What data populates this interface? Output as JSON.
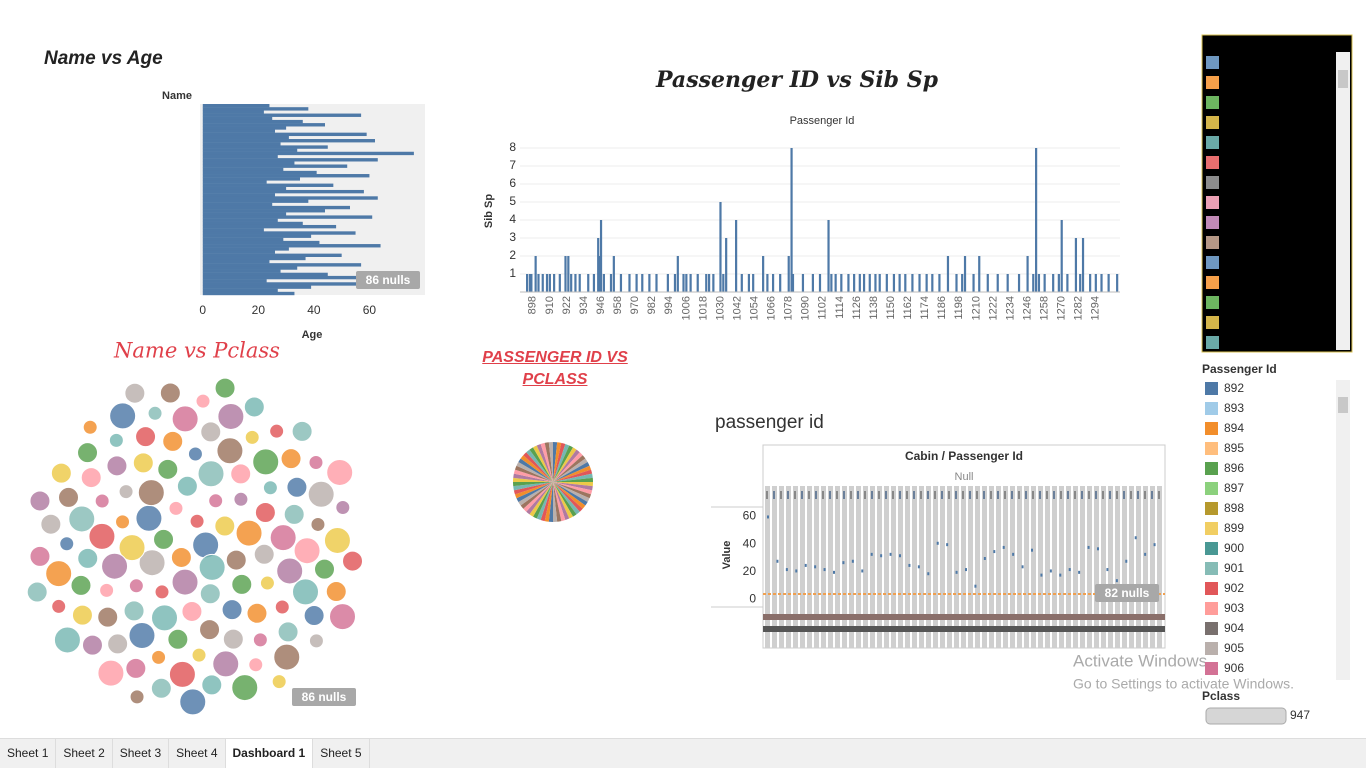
{
  "name_vs_age": {
    "title": "Name  vs  Age",
    "chart_data": {
      "type": "bar",
      "orientation": "horizontal",
      "y_label": "Name",
      "x_label": "Age",
      "color": "#4e79a7",
      "values": [
        24,
        38,
        22,
        57,
        25,
        36,
        44,
        30,
        26,
        59,
        31,
        62,
        28,
        45,
        34,
        76,
        27,
        63,
        33,
        52,
        29,
        41,
        60,
        35,
        23,
        47,
        30,
        58,
        26,
        63,
        38,
        25,
        53,
        44,
        30,
        61,
        27,
        36,
        48,
        22,
        55,
        39,
        29,
        42,
        64,
        31,
        26,
        50,
        37,
        24,
        57,
        34,
        28,
        45,
        60,
        23,
        70,
        39,
        27,
        33
      ],
      "xlim": [
        -1,
        80
      ],
      "xticks": [
        0,
        20,
        40,
        60
      ],
      "nulls_label": "86 nulls"
    }
  },
  "passenger_vs_sibsp": {
    "title": "Passenger ID vs Sib Sp",
    "chart_data": {
      "type": "bar",
      "x_label": "Passenger Id",
      "y_label": "Sib Sp",
      "color": "#4e79a7",
      "grid": true,
      "x": [
        894,
        896,
        897,
        900,
        902,
        905,
        908,
        910,
        913,
        917,
        921,
        923,
        925,
        928,
        931,
        937,
        941,
        944,
        945,
        946,
        948,
        953,
        955,
        960,
        966,
        971,
        975,
        980,
        985,
        993,
        998,
        1000,
        1004,
        1006,
        1009,
        1014,
        1020,
        1022,
        1025,
        1030,
        1032,
        1034,
        1041,
        1045,
        1050,
        1053,
        1060,
        1063,
        1067,
        1072,
        1078,
        1080,
        1081,
        1088,
        1095,
        1100,
        1106,
        1108,
        1111,
        1115,
        1120,
        1124,
        1128,
        1131,
        1135,
        1139,
        1142,
        1147,
        1152,
        1156,
        1160,
        1165,
        1170,
        1175,
        1179,
        1184,
        1190,
        1196,
        1200,
        1202,
        1208,
        1212,
        1218,
        1225,
        1232,
        1240,
        1246,
        1250,
        1252,
        1254,
        1258,
        1264,
        1268,
        1270,
        1274,
        1280,
        1283,
        1285,
        1290,
        1294,
        1298,
        1303,
        1309
      ],
      "values": [
        1,
        1,
        1,
        2,
        1,
        1,
        1,
        1,
        1,
        1,
        2,
        2,
        1,
        1,
        1,
        1,
        1,
        3,
        2,
        4,
        1,
        1,
        2,
        1,
        1,
        1,
        1,
        1,
        1,
        1,
        1,
        2,
        1,
        1,
        1,
        1,
        1,
        1,
        1,
        5,
        1,
        3,
        4,
        1,
        1,
        1,
        2,
        1,
        1,
        1,
        2,
        8,
        1,
        1,
        1,
        1,
        4,
        1,
        1,
        1,
        1,
        1,
        1,
        1,
        1,
        1,
        1,
        1,
        1,
        1,
        1,
        1,
        1,
        1,
        1,
        1,
        2,
        1,
        1,
        2,
        1,
        2,
        1,
        1,
        1,
        1,
        2,
        1,
        8,
        1,
        1,
        1,
        1,
        4,
        1,
        3,
        1,
        3,
        1,
        1,
        1,
        1,
        1
      ],
      "xlim": [
        889,
        1311
      ],
      "xticks": [
        898,
        910,
        922,
        934,
        946,
        958,
        970,
        982,
        994,
        1006,
        1018,
        1030,
        1042,
        1054,
        1066,
        1078,
        1090,
        1102,
        1114,
        1126,
        1138,
        1150,
        1162,
        1174,
        1186,
        1198,
        1210,
        1222,
        1234,
        1246,
        1258,
        1270,
        1282,
        1294
      ],
      "ylim": [
        0,
        9
      ],
      "yticks": [
        1,
        2,
        3,
        4,
        5,
        6,
        7,
        8
      ]
    }
  },
  "name_vs_pclass": {
    "title": "Name vs Pclass",
    "chart_data": {
      "type": "bubble",
      "colors": [
        "#4e79a7",
        "#f28e2b",
        "#e15759",
        "#76b7b2",
        "#59a14f",
        "#edc948",
        "#b07aa1",
        "#ff9da7",
        "#9c755f",
        "#bab0ac",
        "#d37295",
        "#86bcb6"
      ],
      "values": [
        3,
        2,
        1,
        3,
        2,
        2,
        3,
        1,
        2,
        3,
        1,
        2,
        3,
        3,
        1,
        2,
        2,
        3,
        1,
        2,
        3,
        2,
        1,
        3,
        2,
        1,
        2,
        3,
        2,
        1,
        3,
        2,
        2,
        1,
        3,
        2,
        1,
        2,
        3,
        1,
        2,
        2,
        3,
        1,
        3,
        2,
        1,
        2,
        3,
        2,
        1,
        2,
        3,
        1,
        2,
        3,
        2,
        2,
        1,
        3,
        2,
        1,
        2,
        3,
        2,
        1,
        3,
        2,
        1,
        2,
        3,
        2,
        1,
        2,
        3,
        1,
        2,
        2,
        3,
        1,
        2,
        3,
        2,
        1,
        2,
        3,
        1,
        2,
        2,
        3,
        2,
        1,
        3,
        2,
        1,
        2,
        3,
        2,
        1,
        2,
        3,
        2,
        1,
        3,
        2,
        1,
        2,
        2,
        3,
        1,
        2,
        3,
        2,
        1,
        2,
        3,
        1,
        2,
        3,
        2
      ],
      "nulls_label": "86 nulls"
    }
  },
  "passenger_vs_pclass": {
    "title": "PASSENGER ID VS PCLASS",
    "chart_data": {
      "type": "pie",
      "colors": [
        "#4e79a7",
        "#f28e2b",
        "#e15759",
        "#76b7b2",
        "#59a14f",
        "#edc948",
        "#b07aa1",
        "#ff9da7",
        "#9c755f",
        "#bab0ac"
      ],
      "values": [
        1,
        1,
        1,
        1,
        1,
        1,
        1,
        1,
        1,
        1,
        1,
        1,
        1,
        1,
        1,
        1,
        1,
        1,
        1,
        1,
        1,
        1,
        1,
        1,
        1,
        1,
        1,
        1,
        1,
        1,
        1,
        1,
        1,
        1,
        1,
        1,
        1,
        1,
        1,
        1,
        1,
        1,
        1,
        1,
        1,
        1,
        1,
        1,
        1,
        1,
        1,
        1,
        1,
        1,
        1,
        1,
        1,
        1,
        1,
        1
      ]
    }
  },
  "passenger_id_sheet": {
    "title": "passenger id",
    "chart_data": {
      "type": "scatter",
      "header": "Cabin / Passenger Id",
      "column": "Null",
      "y_label": "Value",
      "color": "#4e79a7",
      "values": [
        60,
        28,
        22,
        21,
        25,
        24,
        22,
        20,
        27,
        28,
        21,
        33,
        32,
        33,
        32,
        25,
        24,
        19,
        41,
        40,
        20,
        22,
        10,
        30,
        35,
        38,
        33,
        24,
        36,
        18,
        21,
        18,
        22,
        20,
        38,
        37,
        22,
        14,
        28,
        45,
        33,
        40
      ],
      "ylim": [
        -35,
        82
      ],
      "yticks": [
        0,
        20,
        40,
        60
      ],
      "nulls_label": "82 nulls"
    }
  },
  "color_panel": {
    "colors": [
      "#6f98c0",
      "#f5a04a",
      "#6db560",
      "#d4b54a",
      "#6aa9a6",
      "#e86e6e",
      "#8c8c8c",
      "#eba0b4",
      "#c18ab6",
      "#b59886",
      "#6f98c0",
      "#f5a04a",
      "#6db560",
      "#d4b54a",
      "#6aa9a6"
    ]
  },
  "legend": {
    "title": "Passenger Id",
    "items": [
      {
        "label": "892",
        "color": "#4e79a7"
      },
      {
        "label": "893",
        "color": "#a0cbe8"
      },
      {
        "label": "894",
        "color": "#f28e2b"
      },
      {
        "label": "895",
        "color": "#ffbe7d"
      },
      {
        "label": "896",
        "color": "#59a14f"
      },
      {
        "label": "897",
        "color": "#8cd17d"
      },
      {
        "label": "898",
        "color": "#b6992d"
      },
      {
        "label": "899",
        "color": "#f1ce63"
      },
      {
        "label": "900",
        "color": "#499894"
      },
      {
        "label": "901",
        "color": "#86bcb6"
      },
      {
        "label": "902",
        "color": "#e15759"
      },
      {
        "label": "903",
        "color": "#ff9d9a"
      },
      {
        "label": "904",
        "color": "#79706e"
      },
      {
        "label": "905",
        "color": "#bab0ac"
      },
      {
        "label": "906",
        "color": "#d37295"
      }
    ]
  },
  "filter": {
    "title": "Pclass",
    "value": "947"
  },
  "watermark": {
    "title": "Activate Windows",
    "subtitle": "Go to Settings to activate Windows."
  },
  "tabs": [
    "Sheet 1",
    "Sheet 2",
    "Sheet 3",
    "Sheet 4",
    "Dashboard 1",
    "Sheet 5"
  ]
}
